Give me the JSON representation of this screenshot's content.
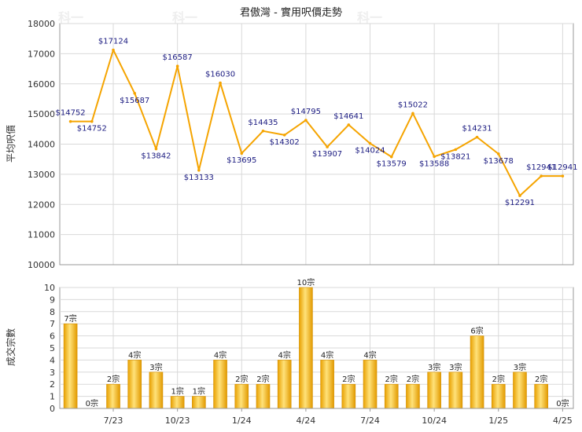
{
  "chart_data": [
    {
      "type": "line",
      "title": "君傲灣 - 實用呎價走勢",
      "ylabel": "平均呎價",
      "ylim": [
        10000,
        18000
      ],
      "yticks": [
        10000,
        11000,
        12000,
        13000,
        14000,
        15000,
        16000,
        17000,
        18000
      ],
      "grid": true,
      "x": [
        0,
        1,
        2,
        3,
        4,
        5,
        6,
        7,
        8,
        9,
        10,
        11,
        12,
        13,
        14,
        15,
        16,
        17,
        18,
        19,
        20,
        21,
        22,
        23
      ],
      "values": [
        14752,
        14752,
        17124,
        15687,
        13842,
        16587,
        13133,
        16030,
        13695,
        14435,
        14302,
        14795,
        13907,
        14641,
        14024,
        13579,
        15022,
        13588,
        13821,
        14231,
        13678,
        12291,
        12941,
        12941
      ],
      "labels": [
        "$14752",
        "$14752",
        "$17124",
        "$15687",
        "$13842",
        "$16587",
        "$13133",
        "$16030",
        "$13695",
        "$14435",
        "$14302",
        "$14795",
        "$13907",
        "$14641",
        "$14024",
        "$13579",
        "$15022",
        "$13588",
        "$13821",
        "$14231",
        "$13678",
        "$12291",
        "$12941",
        "$12941"
      ],
      "line_color": "#f5a400"
    },
    {
      "type": "bar",
      "ylabel": "成交宗數",
      "ylim": [
        0,
        10
      ],
      "yticks": [
        0,
        1,
        2,
        3,
        4,
        5,
        6,
        7,
        8,
        9,
        10
      ],
      "grid": true,
      "x": [
        0,
        1,
        2,
        3,
        4,
        5,
        6,
        7,
        8,
        9,
        10,
        11,
        12,
        13,
        14,
        15,
        16,
        17,
        18,
        19,
        20,
        21,
        22,
        23
      ],
      "values": [
        7,
        0,
        2,
        4,
        3,
        1,
        1,
        4,
        2,
        2,
        4,
        10,
        4,
        2,
        4,
        2,
        2,
        3,
        3,
        6,
        2,
        3,
        2,
        0
      ],
      "labels": [
        "7宗",
        "0宗",
        "2宗",
        "4宗",
        "3宗",
        "1宗",
        "1宗",
        "4宗",
        "2宗",
        "2宗",
        "4宗",
        "10宗",
        "4宗",
        "2宗",
        "4宗",
        "2宗",
        "2宗",
        "3宗",
        "3宗",
        "6宗",
        "2宗",
        "3宗",
        "2宗",
        "0宗"
      ],
      "xticks": [
        {
          "pos": 2.5,
          "label": "7/23"
        },
        {
          "pos": 5.5,
          "label": "10/23"
        },
        {
          "pos": 8.5,
          "label": "1/24"
        },
        {
          "pos": 11.5,
          "label": "4/24"
        },
        {
          "pos": 14.5,
          "label": "7/24"
        },
        {
          "pos": 17.5,
          "label": "10/24"
        },
        {
          "pos": 20.5,
          "label": "1/25"
        },
        {
          "pos": 23.5,
          "label": "4/25"
        }
      ],
      "bar_color": "#f5b400"
    }
  ],
  "watermark": "科一"
}
